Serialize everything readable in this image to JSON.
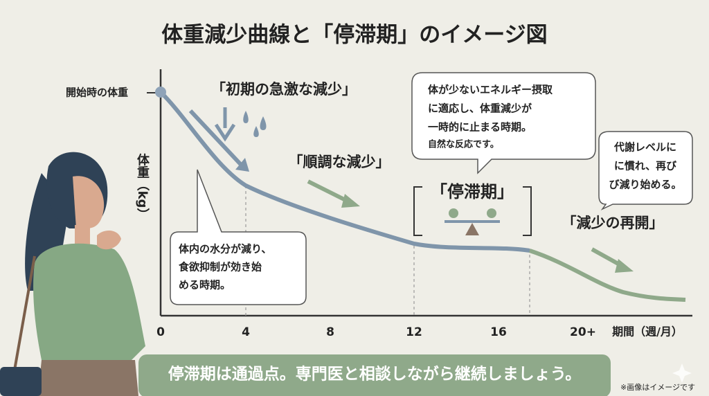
{
  "title": "体重減少曲線と「停滞期」のイメージ図",
  "y_axis": {
    "label": "体重（kg）",
    "start_label": "開始時の体重"
  },
  "x_axis": {
    "ticks": [
      "0",
      "4",
      "8",
      "12",
      "16",
      "20+"
    ],
    "label": "期間（週/月）"
  },
  "phases": [
    "「初期の急激な減少」",
    "「順調な減少」",
    "「停滞期」",
    "「減少の再開」"
  ],
  "bubbles": [
    {
      "lines": [
        "体内の水分が減り、",
        "食欲抑制が効き始",
        "める時期。"
      ]
    },
    {
      "lines": [
        "体が少ないエネルギー摂取",
        "に適応し、体重減少が",
        "一時的に止まる時期。",
        "自然な反応です。"
      ]
    },
    {
      "lines": [
        "代謝レベルに",
        "に慣れ、再び",
        "び減り始める。"
      ]
    }
  ],
  "banner": "停滞期は通過点。専門医と相談しながら継続しましょう。",
  "footnote": "※画像はイメージです"
}
